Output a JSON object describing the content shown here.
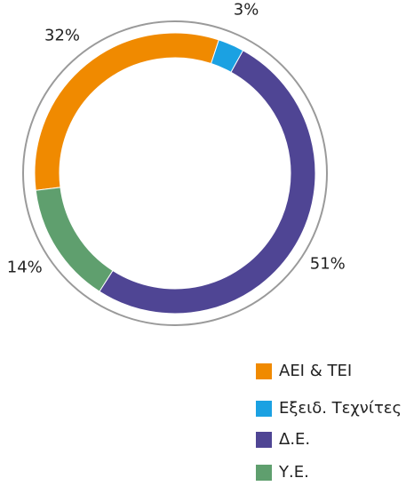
{
  "chart_data": {
    "type": "donut",
    "categories": [
      "ΑΕΙ & ΤΕΙ",
      "Εξειδ. Τεχνίτες",
      "Δ.Ε.",
      "Υ.Ε."
    ],
    "values": [
      32,
      3,
      51,
      14
    ],
    "value_labels": [
      "32%",
      "3%",
      "51%",
      "14%"
    ],
    "colors": [
      "#f08a00",
      "#1ba1e2",
      "#4f4594",
      "#5f9f6e"
    ]
  }
}
